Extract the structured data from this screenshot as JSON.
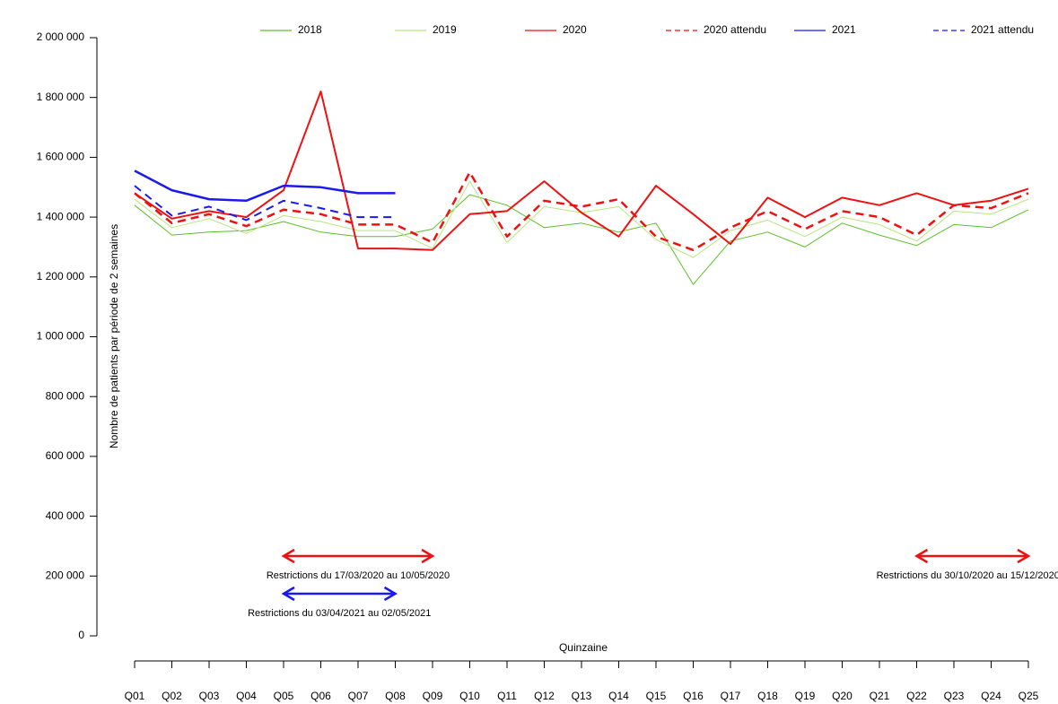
{
  "chart_data": {
    "type": "line",
    "y_label": "Nombre de patients par période de 2 semaines",
    "x_label": "Quinzaine",
    "categories": [
      "Q01",
      "Q02",
      "Q03",
      "Q04",
      "Q05",
      "Q06",
      "Q07",
      "Q08",
      "Q09",
      "Q10",
      "Q11",
      "Q12",
      "Q13",
      "Q14",
      "Q15",
      "Q16",
      "Q17",
      "Q18",
      "Q19",
      "Q20",
      "Q21",
      "Q22",
      "Q23",
      "Q24",
      "Q25"
    ],
    "ylim": [
      0,
      2000000
    ],
    "yticks": [
      0,
      {
        "value": 200000,
        "label": "200 000"
      },
      {
        "value": 400000,
        "label": "400 000"
      },
      {
        "value": 600000,
        "label": "600 000"
      },
      {
        "value": 800000,
        "label": "800 000"
      },
      {
        "value": 1000000,
        "label": "1 000 000"
      },
      {
        "value": 1200000,
        "label": "1 200 000"
      },
      {
        "value": 1400000,
        "label": "1 400 000"
      },
      {
        "value": 1600000,
        "label": "1 600 000"
      },
      {
        "value": 1800000,
        "label": "1 800 000"
      },
      {
        "value": 2000000,
        "label": "2 000 000"
      }
    ],
    "legend": "top",
    "series": [
      {
        "name": "2018",
        "color": "#5cbf2a",
        "linestyle": "solid",
        "values": [
          1440000,
          1340000,
          1350000,
          1355000,
          1385000,
          1350000,
          1335000,
          1335000,
          1360000,
          1475000,
          1440000,
          1365000,
          1380000,
          1350000,
          1380000,
          1175000,
          1320000,
          1350000,
          1300000,
          1380000,
          1340000,
          1305000,
          1375000,
          1365000,
          1425000
        ]
      },
      {
        "name": "2019",
        "color": "#b8e67c",
        "linestyle": "solid",
        "values": [
          1460000,
          1365000,
          1395000,
          1345000,
          1405000,
          1385000,
          1355000,
          1355000,
          1295000,
          1520000,
          1315000,
          1435000,
          1415000,
          1435000,
          1325000,
          1265000,
          1355000,
          1390000,
          1335000,
          1400000,
          1375000,
          1320000,
          1420000,
          1410000,
          1460000
        ]
      },
      {
        "name": "2020",
        "color": "#ee1111",
        "linestyle": "solid",
        "values": [
          1480000,
          1395000,
          1420000,
          1400000,
          1490000,
          1820000,
          1295000,
          1295000,
          1290000,
          1410000,
          1420000,
          1520000,
          1415000,
          1335000,
          1505000,
          1410000,
          1310000,
          1465000,
          1400000,
          1465000,
          1440000,
          1480000,
          1440000,
          1455000,
          1495000
        ]
      },
      {
        "name": "2020 attendu",
        "color": "#ee1111",
        "linestyle": "dashed",
        "values": [
          1480000,
          1380000,
          1410000,
          1370000,
          1425000,
          1410000,
          1375000,
          1375000,
          1315000,
          1550000,
          1335000,
          1455000,
          1435000,
          1460000,
          1335000,
          1290000,
          1365000,
          1420000,
          1360000,
          1420000,
          1400000,
          1340000,
          1440000,
          1430000,
          1480000
        ]
      },
      {
        "name": "2021",
        "color": "#1a1aee",
        "linestyle": "solid",
        "values": [
          1555000,
          1490000,
          1460000,
          1455000,
          1505000,
          1500000,
          1480000,
          1480000,
          null,
          null,
          null,
          null,
          null,
          null,
          null,
          null,
          null,
          null,
          null,
          null,
          null,
          null,
          null,
          null,
          null
        ]
      },
      {
        "name": "2021 attendu",
        "color": "#1a1aee",
        "linestyle": "dashed",
        "values": [
          1505000,
          1405000,
          1435000,
          1390000,
          1455000,
          1430000,
          1400000,
          1400000,
          null,
          null,
          null,
          null,
          null,
          null,
          null,
          null,
          null,
          null,
          null,
          null,
          null,
          null,
          null,
          null,
          null
        ]
      }
    ],
    "annotations": [
      {
        "text": "Restrictions du 17/03/2020 au 10/05/2020",
        "color": "#ee1111",
        "from": "Q05",
        "to": "Q09"
      },
      {
        "text": "Restrictions du 03/04/2021 au 02/05/2021",
        "color": "#1a1aee",
        "from": "Q05",
        "to": "Q08"
      },
      {
        "text": "Restrictions du 30/10/2020 au 15/12/2020",
        "color": "#ee1111",
        "from": "Q22",
        "to": "Q25"
      }
    ]
  }
}
